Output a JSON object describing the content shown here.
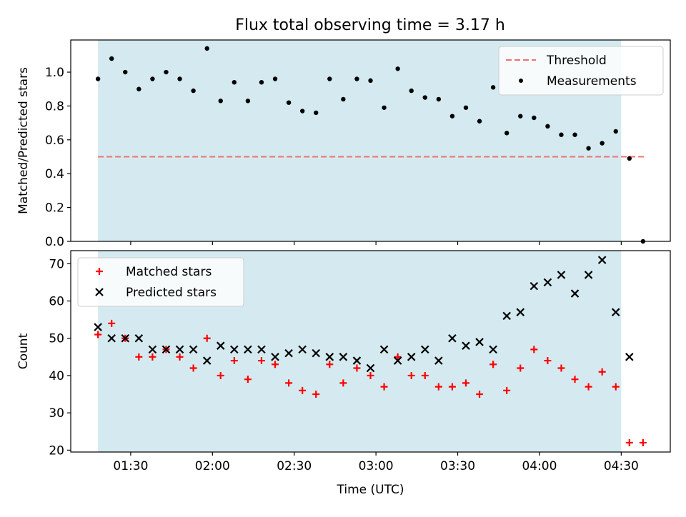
{
  "title": "Flux total observing time = 3.17 h",
  "chart_data": [
    {
      "type": "scatter",
      "panel": "top",
      "ylabel": "Matched/Predicted stars",
      "ylim": [
        0,
        1.19
      ],
      "yticks": [
        "0.0",
        "0.2",
        "0.4",
        "0.6",
        "0.8",
        "1.0"
      ],
      "ytick_values": [
        0,
        0.2,
        0.4,
        0.6,
        0.8,
        1.0
      ],
      "xlim_minutes": [
        68,
        288
      ],
      "shaded_span_minutes": [
        78,
        270
      ],
      "shade_color": "#d4eaf0",
      "legend_position": "upper right",
      "threshold": {
        "name": "Threshold",
        "value": 0.5,
        "x_range_minutes": [
          78,
          279
        ],
        "color": "#f07070"
      },
      "series": [
        {
          "name": "Measurements",
          "color": "#000000",
          "x_minutes": [
            78,
            83,
            88,
            93,
            98,
            103,
            108,
            113,
            118,
            123,
            128,
            133,
            138,
            143,
            148,
            153,
            158,
            163,
            168,
            173,
            178,
            183,
            188,
            193,
            198,
            203,
            208,
            213,
            218,
            223,
            228,
            233,
            238,
            243,
            248,
            253,
            258,
            263,
            268,
            273,
            278
          ],
          "values": [
            0.96,
            1.08,
            1.0,
            0.9,
            0.96,
            1.0,
            0.96,
            0.89,
            1.14,
            0.83,
            0.94,
            0.83,
            0.94,
            0.96,
            0.82,
            0.77,
            0.76,
            0.96,
            0.84,
            0.96,
            0.95,
            0.79,
            1.02,
            0.89,
            0.85,
            0.84,
            0.74,
            0.79,
            0.71,
            0.91,
            0.64,
            0.74,
            0.73,
            0.68,
            0.63,
            0.63,
            0.55,
            0.58,
            0.65,
            0.49,
            0.0
          ]
        }
      ]
    },
    {
      "type": "scatter",
      "panel": "bottom",
      "xlabel": "Time (UTC)",
      "ylabel": "Count",
      "ylim": [
        19.5,
        73.5
      ],
      "yticks": [
        "20",
        "30",
        "40",
        "50",
        "60",
        "70"
      ],
      "ytick_values": [
        20,
        30,
        40,
        50,
        60,
        70
      ],
      "xlim_minutes": [
        68,
        288
      ],
      "xticks": [
        "01:30",
        "02:00",
        "02:30",
        "03:00",
        "03:30",
        "04:00",
        "04:30"
      ],
      "xtick_minutes": [
        90,
        120,
        150,
        180,
        210,
        240,
        270
      ],
      "shaded_span_minutes": [
        78,
        270
      ],
      "shade_color": "#d4eaf0",
      "legend_position": "upper left",
      "series": [
        {
          "name": "Matched stars",
          "marker": "plus",
          "color": "#ff0000",
          "x_minutes": [
            78,
            83,
            88,
            93,
            98,
            103,
            108,
            113,
            118,
            123,
            128,
            133,
            138,
            143,
            148,
            153,
            158,
            163,
            168,
            173,
            178,
            183,
            188,
            193,
            198,
            203,
            208,
            213,
            218,
            223,
            228,
            233,
            238,
            243,
            248,
            253,
            258,
            263,
            268,
            273,
            278
          ],
          "values": [
            51,
            54,
            50,
            45,
            45,
            47,
            45,
            42,
            50,
            40,
            44,
            39,
            44,
            43,
            38,
            36,
            35,
            43,
            38,
            42,
            40,
            37,
            45,
            40,
            40,
            37,
            37,
            38,
            35,
            43,
            36,
            42,
            47,
            44,
            42,
            39,
            37,
            41,
            37,
            22,
            22
          ]
        },
        {
          "name": "Predicted stars",
          "marker": "x",
          "color": "#000000",
          "x_minutes": [
            78,
            83,
            88,
            93,
            98,
            103,
            108,
            113,
            118,
            123,
            128,
            133,
            138,
            143,
            148,
            153,
            158,
            163,
            168,
            173,
            178,
            183,
            188,
            193,
            198,
            203,
            208,
            213,
            218,
            223,
            228,
            233,
            238,
            243,
            248,
            253,
            258,
            263,
            268,
            273
          ],
          "values": [
            53,
            50,
            50,
            50,
            47,
            47,
            47,
            47,
            44,
            48,
            47,
            47,
            47,
            45,
            46,
            47,
            46,
            45,
            45,
            44,
            42,
            47,
            44,
            45,
            47,
            44,
            50,
            48,
            49,
            47,
            56,
            57,
            64,
            65,
            67,
            62,
            67,
            71,
            57,
            45
          ]
        }
      ]
    }
  ]
}
